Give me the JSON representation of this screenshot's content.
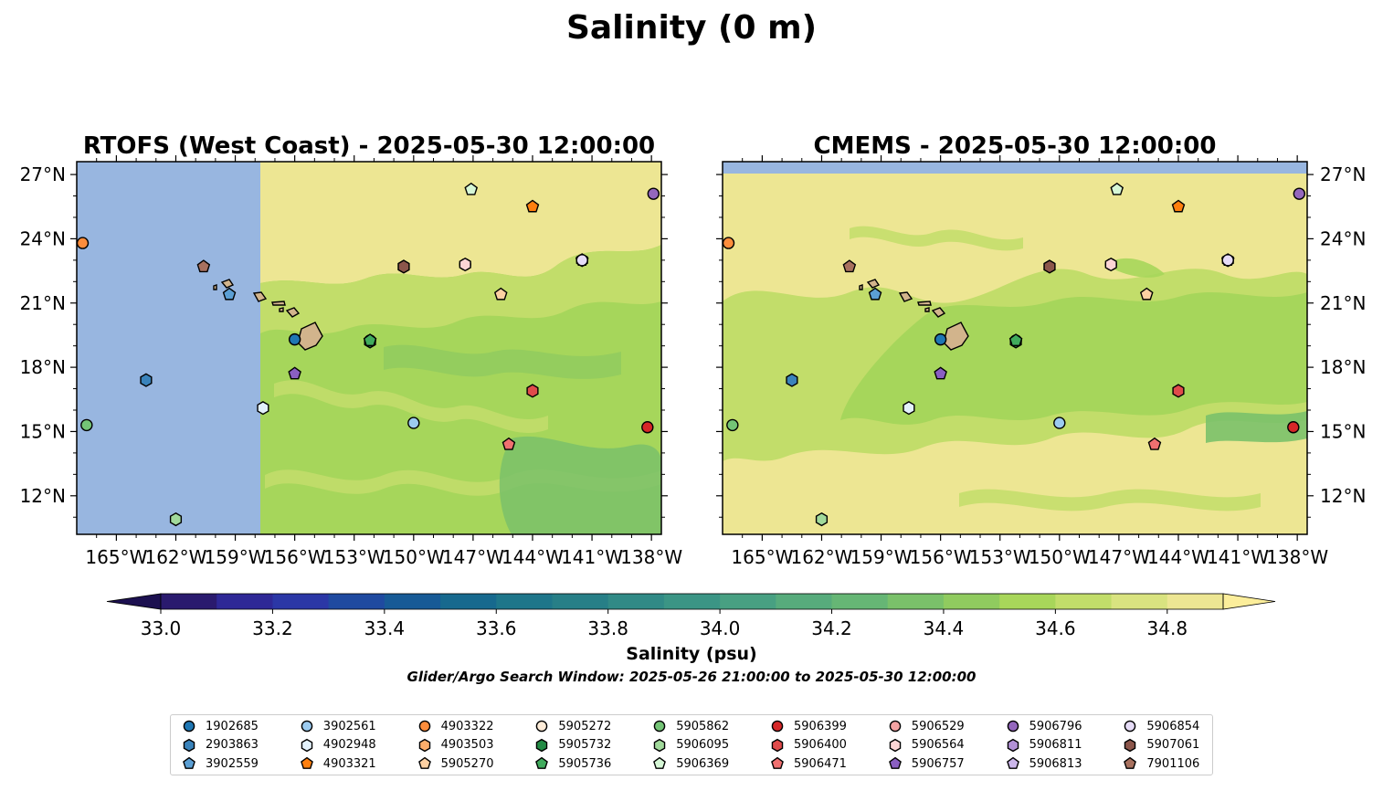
{
  "figure": {
    "suptitle": "Salinity (0 m)",
    "footnote": "Glider/Argo Search Window: 2025-05-26 21:00:00 to 2025-05-30 12:00:00"
  },
  "chart_data": [
    {
      "type": "heatmap",
      "title": "RTOFS (West Coast) - 2025-05-30 12:00:00",
      "xlim": [
        -167.0,
        -137.5
      ],
      "ylim": [
        10.2,
        27.6
      ],
      "x_ticks": [
        "165°W",
        "162°W",
        "159°W",
        "156°W",
        "153°W",
        "150°W",
        "147°W",
        "144°W",
        "141°W",
        "138°W"
      ],
      "y_ticks": [
        "12°N",
        "15°N",
        "18°N",
        "21°N",
        "24°N",
        "27°N"
      ],
      "no_data_region": {
        "lon_min": -167.0,
        "lon_max": -157.8,
        "color": "#98b6e0"
      },
      "field": "Sea surface salinity (psu), mostly 34.5-34.9, fresher near 34.5 in south and east"
    },
    {
      "type": "heatmap",
      "title": "CMEMS - 2025-05-30 12:00:00",
      "xlim": [
        -167.0,
        -137.5
      ],
      "ylim": [
        10.2,
        27.6
      ],
      "x_ticks": [
        "165°W",
        "162°W",
        "159°W",
        "156°W",
        "153°W",
        "150°W",
        "147°W",
        "144°W",
        "141°W",
        "138°W"
      ],
      "y_ticks": [
        "12°N",
        "15°N",
        "18°N",
        "21°N",
        "24°N",
        "27°N"
      ],
      "no_data_region": {
        "lat_min": 27.05,
        "lat_max": 27.6,
        "color": "#98b6e0"
      },
      "field": "Sea surface salinity (psu), 34.4-34.9, saltier in north and west"
    }
  ],
  "colorbar": {
    "label": "Salinity (psu)",
    "ticks": [
      "33.0",
      "33.2",
      "33.4",
      "33.6",
      "33.8",
      "34.0",
      "34.2",
      "34.4",
      "34.6",
      "34.8"
    ],
    "min": 33.0,
    "max": 34.9,
    "step": 0.1,
    "colors": [
      "#2a1a6e",
      "#2e2896",
      "#2b37a6",
      "#1f4aa0",
      "#175a96",
      "#17698e",
      "#1e768a",
      "#277f87",
      "#318a86",
      "#3b9585",
      "#48a082",
      "#57ab7c",
      "#66b675",
      "#7ac16a",
      "#90cb5f",
      "#a8d65a",
      "#c2dd6a",
      "#d9e380",
      "#ede693"
    ],
    "extend_low": "#1c1050",
    "extend_high": "#fcee9b"
  },
  "floats": [
    {
      "id": "1902685",
      "lon": -156.0,
      "lat": 19.3,
      "color": "#1f77b4",
      "marker": "circle"
    },
    {
      "id": "2903863",
      "lon": -163.5,
      "lat": 17.4,
      "color": "#3a83bb",
      "marker": "hexagon"
    },
    {
      "id": "3902559",
      "lon": -159.3,
      "lat": 21.4,
      "color": "#5b9fd4",
      "marker": "pentagon"
    },
    {
      "id": "3902561",
      "lon": -150.0,
      "lat": 15.4,
      "color": "#9ccbf0",
      "marker": "circle"
    },
    {
      "id": "4902948",
      "lon": -157.6,
      "lat": 16.1,
      "color": "#e3f1fb",
      "marker": "hexagon"
    },
    {
      "id": "4903321",
      "lon": -144.0,
      "lat": 25.5,
      "color": "#ff7f0e",
      "marker": "pentagon"
    },
    {
      "id": "4903322",
      "lon": -166.7,
      "lat": 23.8,
      "color": "#fd8d3c",
      "marker": "circle"
    },
    {
      "id": "4903503",
      "lon": -150.5,
      "lat": 22.7,
      "color": "#fdae6b",
      "marker": "hexagon"
    },
    {
      "id": "5905270",
      "lon": -145.6,
      "lat": 21.4,
      "color": "#fdd0a2",
      "marker": "pentagon"
    },
    {
      "id": "5905272",
      "lon": -152.2,
      "lat": 19.25,
      "color": "#feecd8",
      "marker": "circle"
    },
    {
      "id": "5905732",
      "lon": -152.2,
      "lat": 19.2,
      "color": "#238b45",
      "marker": "hexagon"
    },
    {
      "id": "5905736",
      "lon": -152.2,
      "lat": 19.25,
      "color": "#41ab5d",
      "marker": "pentagon"
    },
    {
      "id": "5905862",
      "lon": -166.5,
      "lat": 15.3,
      "color": "#74c476",
      "marker": "circle"
    },
    {
      "id": "5906095",
      "lon": -162.0,
      "lat": 10.9,
      "color": "#a1d99b",
      "marker": "hexagon"
    },
    {
      "id": "5906369",
      "lon": -147.1,
      "lat": 26.3,
      "color": "#d6f7d6",
      "marker": "pentagon"
    },
    {
      "id": "5906399",
      "lon": -138.2,
      "lat": 15.2,
      "color": "#d62728",
      "marker": "circle"
    },
    {
      "id": "5906400",
      "lon": -144.0,
      "lat": 16.9,
      "color": "#e04b4b",
      "marker": "hexagon"
    },
    {
      "id": "5906471",
      "lon": -145.2,
      "lat": 14.4,
      "color": "#f07070",
      "marker": "pentagon"
    },
    {
      "id": "5906529",
      "lon": -147.4,
      "lat": 22.8,
      "color": "#f4a3a3",
      "marker": "circle"
    },
    {
      "id": "5906564",
      "lon": -147.4,
      "lat": 22.8,
      "color": "#fcd5d5",
      "marker": "hexagon"
    },
    {
      "id": "5906757",
      "lon": -156.0,
      "lat": 17.7,
      "color": "#8a5fc2",
      "marker": "pentagon"
    },
    {
      "id": "5906796",
      "lon": -137.9,
      "lat": 26.1,
      "color": "#9467bd",
      "marker": "circle"
    },
    {
      "id": "5906811",
      "lon": -141.5,
      "lat": 23.0,
      "color": "#b291d6",
      "marker": "hexagon"
    },
    {
      "id": "5906813",
      "lon": -141.5,
      "lat": 23.0,
      "color": "#cbb6ea",
      "marker": "pentagon"
    },
    {
      "id": "5906854",
      "lon": -141.5,
      "lat": 23.0,
      "color": "#e6dcf7",
      "marker": "circle"
    },
    {
      "id": "5907061",
      "lon": -150.5,
      "lat": 22.7,
      "color": "#8c564b",
      "marker": "hexagon"
    },
    {
      "id": "7901106",
      "lon": -160.6,
      "lat": 22.7,
      "color": "#a8715f",
      "marker": "pentagon"
    }
  ],
  "legend_order": [
    "1902685",
    "2903863",
    "3902559",
    "3902561",
    "4902948",
    "4903321",
    "4903322",
    "4903503",
    "5905270",
    "5905272",
    "5905732",
    "5905736",
    "5905862",
    "5906095",
    "5906369",
    "5906399",
    "5906400",
    "5906471",
    "5906529",
    "5906564",
    "5906757",
    "5906796",
    "5906811",
    "5906813",
    "5906854",
    "5907061",
    "7901106"
  ]
}
